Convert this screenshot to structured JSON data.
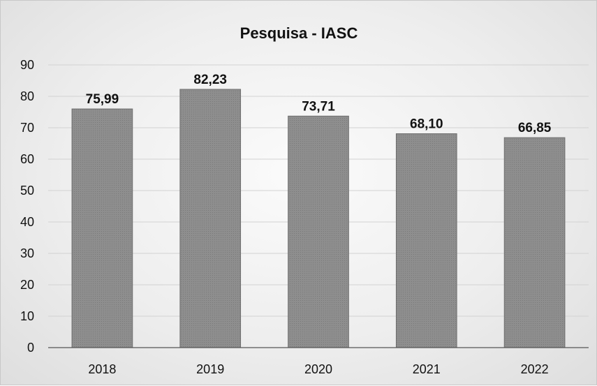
{
  "chart_data": {
    "type": "bar",
    "title": "Pesquisa - IASC",
    "categories": [
      "2018",
      "2019",
      "2020",
      "2021",
      "2022"
    ],
    "values": [
      75.99,
      82.23,
      73.71,
      68.1,
      66.85
    ],
    "data_labels": [
      "75,99",
      "82,23",
      "73,71",
      "68,10",
      "66,85"
    ],
    "ylim": [
      0,
      90
    ],
    "yticks": [
      "0",
      "10",
      "20",
      "30",
      "40",
      "50",
      "60",
      "70",
      "80",
      "90"
    ],
    "xlabel": "",
    "ylabel": "",
    "grid": true,
    "legend": "none",
    "bar_color": "#8c8c8c"
  }
}
